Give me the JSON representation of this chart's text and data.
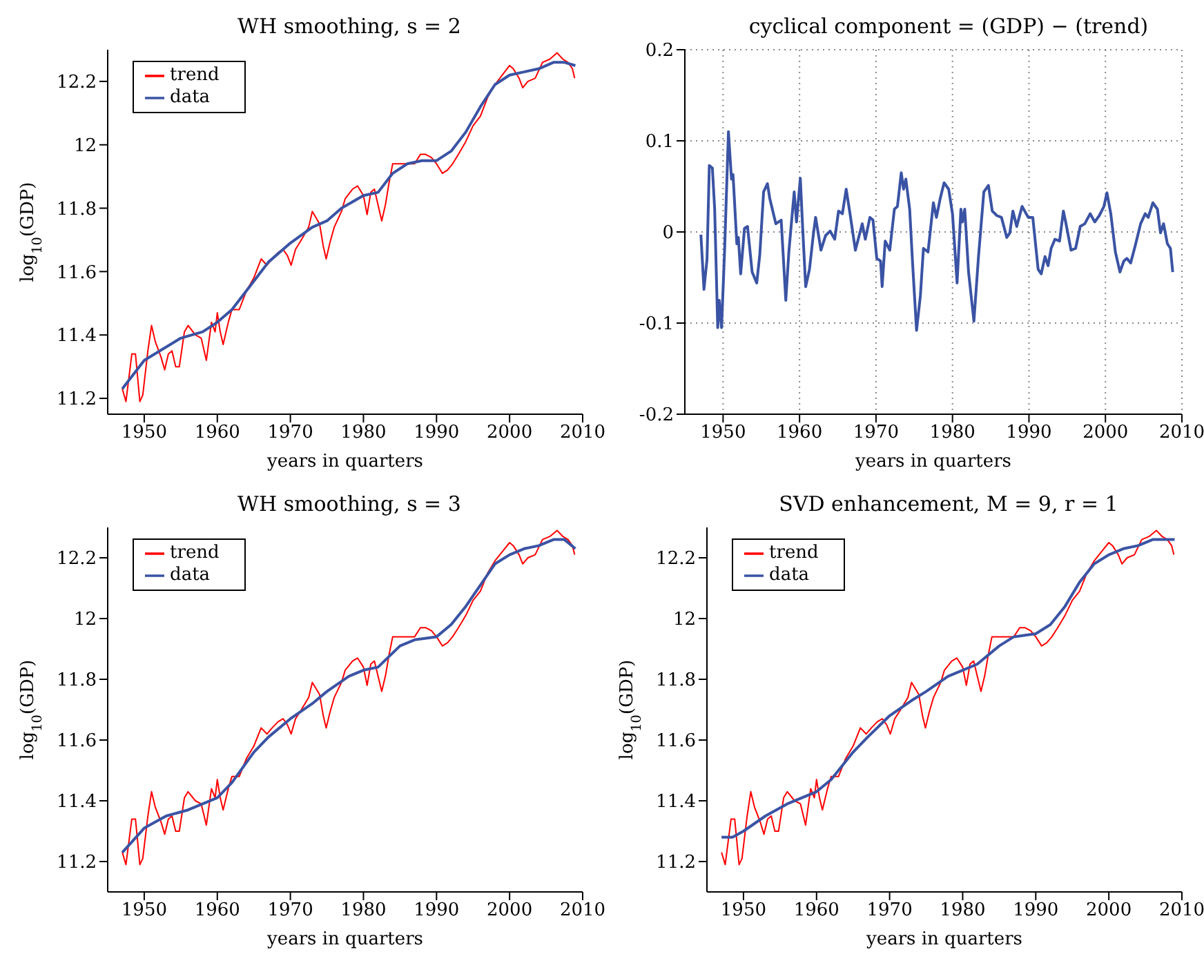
{
  "chart_data": [
    {
      "type": "line",
      "title": "WH smoothing,  s = 2",
      "xlabel": "years in quarters",
      "ylabel": "log$_{10}$(GDP)",
      "xlim": [
        1945,
        2010
      ],
      "xticks": [
        1950,
        1960,
        1970,
        1980,
        1990,
        2000,
        2010
      ],
      "ylim": [
        11.15,
        12.3
      ],
      "yticks": [
        11.2,
        11.4,
        11.6,
        11.8,
        12,
        12.2
      ],
      "grid": false,
      "legend": "top left",
      "series": [
        {
          "name": "trend",
          "color": "#ff0000",
          "x": [
            1947,
            1947.5,
            1948.3,
            1948.8,
            1949.4,
            1949.8,
            1950.5,
            1951,
            1951.5,
            1952.3,
            1952.8,
            1953.3,
            1953.8,
            1954.3,
            1954.8,
            1955.5,
            1956,
            1957,
            1957.8,
            1958.2,
            1958.5,
            1959.2,
            1959.7,
            1960,
            1960.4,
            1960.8,
            1961.5,
            1962,
            1963,
            1964,
            1965,
            1966,
            1966.8,
            1967.5,
            1968.3,
            1969,
            1969.6,
            1970.1,
            1970.7,
            1971.5,
            1972.5,
            1973,
            1973.5,
            1974,
            1974.5,
            1974.9,
            1975.4,
            1976,
            1977,
            1977.5,
            1978.5,
            1979.2,
            1980,
            1980.5,
            1981,
            1981.5,
            1982,
            1982.5,
            1983,
            1983.5,
            1984,
            1985,
            1986,
            1987,
            1987.8,
            1988.5,
            1989.3,
            1990,
            1990.8,
            1991.5,
            1992.2,
            1993,
            1994,
            1995,
            1996,
            1997,
            1998,
            1999,
            2000,
            2000.5,
            2001.3,
            2001.8,
            2002.5,
            2003.5,
            2004.5,
            2005.5,
            2006.5,
            2007.3,
            2008,
            2008.6,
            2008.9
          ],
          "values": [
            11.23,
            11.19,
            11.34,
            11.34,
            11.19,
            11.21,
            11.35,
            11.43,
            11.38,
            11.33,
            11.29,
            11.34,
            11.35,
            11.3,
            11.3,
            11.41,
            11.43,
            11.4,
            11.39,
            11.35,
            11.32,
            11.44,
            11.41,
            11.47,
            11.41,
            11.37,
            11.44,
            11.48,
            11.48,
            11.54,
            11.58,
            11.64,
            11.62,
            11.64,
            11.66,
            11.67,
            11.65,
            11.62,
            11.67,
            11.7,
            11.74,
            11.79,
            11.77,
            11.75,
            11.68,
            11.64,
            11.69,
            11.74,
            11.79,
            11.83,
            11.86,
            11.87,
            11.84,
            11.78,
            11.85,
            11.86,
            11.81,
            11.76,
            11.81,
            11.88,
            11.94,
            11.94,
            11.94,
            11.94,
            11.97,
            11.97,
            11.96,
            11.94,
            11.91,
            11.92,
            11.94,
            11.97,
            12.01,
            12.06,
            12.09,
            12.15,
            12.19,
            12.22,
            12.25,
            12.24,
            12.21,
            12.18,
            12.2,
            12.21,
            12.26,
            12.27,
            12.29,
            12.27,
            12.26,
            12.24,
            12.21
          ]
        },
        {
          "name": "data",
          "color": "#3a53a4",
          "x": [
            1947,
            1950,
            1955,
            1958,
            1960,
            1962,
            1965,
            1967,
            1970,
            1973,
            1975,
            1977,
            1980,
            1982,
            1984,
            1986,
            1988,
            1990,
            1992,
            1994,
            1996,
            1998,
            2000,
            2002,
            2004,
            2006,
            2007.5,
            2009
          ],
          "values": [
            11.23,
            11.32,
            11.39,
            11.41,
            11.44,
            11.48,
            11.57,
            11.63,
            11.69,
            11.74,
            11.76,
            11.8,
            11.84,
            11.85,
            11.91,
            11.94,
            11.95,
            11.95,
            11.98,
            12.04,
            12.12,
            12.19,
            12.22,
            12.23,
            12.24,
            12.26,
            12.26,
            12.25
          ]
        }
      ]
    },
    {
      "type": "line",
      "title": "cyclical component  =  (GDP) − (trend)",
      "xlabel": "years in quarters",
      "xlim": [
        1945,
        2010
      ],
      "xticks": [
        1950,
        1960,
        1970,
        1980,
        1990,
        2000,
        2010
      ],
      "ylim": [
        -0.2,
        0.2
      ],
      "yticks": [
        -0.2,
        -0.1,
        0,
        0.1,
        0.2
      ],
      "grid": true,
      "legend": false,
      "series": [
        {
          "color": "#3a53a4",
          "x": [
            1947.1,
            1947.5,
            1947.9,
            1948.2,
            1948.6,
            1948.9,
            1949.3,
            1949.5,
            1949.8,
            1950.2,
            1950.7,
            1951.1,
            1951.3,
            1951.8,
            1952,
            1952.3,
            1952.8,
            1953.2,
            1953.8,
            1954.4,
            1954.8,
            1955.3,
            1955.8,
            1956.1,
            1956.9,
            1957.6,
            1958.2,
            1958.6,
            1959.3,
            1959.6,
            1960.1,
            1960.4,
            1960.8,
            1961.3,
            1961.8,
            1962.1,
            1962.8,
            1963.4,
            1964,
            1964.6,
            1965.1,
            1965.6,
            1966.1,
            1966.6,
            1967.3,
            1968.2,
            1968.6,
            1969.2,
            1969.6,
            1970.1,
            1970.6,
            1970.8,
            1971.2,
            1971.8,
            1972.4,
            1972.8,
            1973.3,
            1973.6,
            1973.9,
            1974.4,
            1974.8,
            1975.3,
            1975.8,
            1976.2,
            1976.8,
            1977.5,
            1977.9,
            1978.4,
            1978.9,
            1979.5,
            1980,
            1980.6,
            1981.1,
            1981.3,
            1981.6,
            1982.1,
            1982.8,
            1983.4,
            1984.1,
            1984.7,
            1985.2,
            1985.8,
            1986.4,
            1987.1,
            1987.5,
            1987.9,
            1988.4,
            1989.1,
            1989.9,
            1990.5,
            1991.2,
            1991.6,
            1992.1,
            1992.5,
            1992.9,
            1993.4,
            1994,
            1994.5,
            1994.8,
            1995.5,
            1996.1,
            1996.7,
            1997.3,
            1998,
            1998.6,
            1999.2,
            1999.8,
            2000.2,
            2000.7,
            2001.3,
            2001.9,
            2002.4,
            2002.8,
            2003.3,
            2003.9,
            2004.6,
            2005.2,
            2005.6,
            2006.2,
            2006.8,
            2007.2,
            2007.6,
            2008.1,
            2008.5,
            2008.8
          ],
          "values": [
            -0.003,
            -0.063,
            -0.03,
            0.073,
            0.07,
            0.025,
            -0.105,
            -0.075,
            -0.105,
            -0.02,
            0.11,
            0.058,
            0.063,
            -0.013,
            -0.006,
            -0.046,
            0.004,
            0.006,
            -0.044,
            -0.056,
            -0.025,
            0.044,
            0.053,
            0.037,
            0.009,
            0.013,
            -0.075,
            -0.022,
            0.044,
            0.011,
            0.059,
            0.006,
            -0.06,
            -0.041,
            -0.003,
            0.016,
            -0.02,
            -0.004,
            0.001,
            -0.008,
            0.023,
            0.02,
            0.047,
            0.02,
            -0.02,
            0.009,
            -0.008,
            0.016,
            0.013,
            -0.029,
            -0.032,
            -0.06,
            -0.01,
            -0.02,
            0.025,
            0.028,
            0.065,
            0.047,
            0.058,
            0.025,
            -0.037,
            -0.108,
            -0.07,
            -0.018,
            -0.022,
            0.032,
            0.016,
            0.037,
            0.054,
            0.047,
            0.02,
            -0.056,
            0.025,
            0.011,
            0.025,
            -0.044,
            -0.098,
            -0.027,
            0.044,
            0.051,
            0.023,
            0.018,
            0.016,
            -0.006,
            -0.001,
            0.023,
            0.006,
            0.028,
            0.016,
            0.016,
            -0.041,
            -0.046,
            -0.027,
            -0.037,
            -0.018,
            -0.008,
            -0.01,
            0.023,
            0.011,
            -0.02,
            -0.018,
            0.006,
            0.009,
            0.02,
            0.011,
            0.018,
            0.028,
            0.043,
            0.02,
            -0.022,
            -0.044,
            -0.032,
            -0.029,
            -0.034,
            -0.015,
            0.009,
            0.02,
            0.016,
            0.032,
            0.025,
            -0.001,
            0.009,
            -0.013,
            -0.018,
            -0.044
          ]
        }
      ]
    },
    {
      "type": "line",
      "title": "WH smoothing,  s = 3",
      "xlabel": "years in quarters",
      "ylabel": "log$_{10}$(GDP)",
      "xlim": [
        1945,
        2010
      ],
      "xticks": [
        1950,
        1960,
        1970,
        1980,
        1990,
        2000,
        2010
      ],
      "ylim": [
        11.1,
        12.3
      ],
      "yticks": [
        11.2,
        11.4,
        11.6,
        11.8,
        12,
        12.2
      ],
      "grid": false,
      "legend": "top left",
      "series": [
        {
          "name": "trend",
          "color": "#ff0000",
          "x": [
            1947,
            1947.5,
            1948.3,
            1948.8,
            1949.4,
            1949.8,
            1950.5,
            1951,
            1951.5,
            1952.3,
            1952.8,
            1953.3,
            1953.8,
            1954.3,
            1954.8,
            1955.5,
            1956,
            1957,
            1957.8,
            1958.2,
            1958.5,
            1959.2,
            1959.7,
            1960,
            1960.4,
            1960.8,
            1961.5,
            1962,
            1963,
            1964,
            1965,
            1966,
            1966.8,
            1967.5,
            1968.3,
            1969,
            1969.6,
            1970.1,
            1970.7,
            1971.5,
            1972.5,
            1973,
            1973.5,
            1974,
            1974.5,
            1974.9,
            1975.4,
            1976,
            1977,
            1977.5,
            1978.5,
            1979.2,
            1980,
            1980.5,
            1981,
            1981.5,
            1982,
            1982.5,
            1983,
            1983.5,
            1984,
            1985,
            1986,
            1987,
            1987.8,
            1988.5,
            1989.3,
            1990,
            1990.8,
            1991.5,
            1992.2,
            1993,
            1994,
            1995,
            1996,
            1997,
            1998,
            1999,
            2000,
            2000.5,
            2001.3,
            2001.8,
            2002.5,
            2003.5,
            2004.5,
            2005.5,
            2006.5,
            2007.3,
            2008,
            2008.6,
            2008.9
          ],
          "values": [
            11.23,
            11.19,
            11.34,
            11.34,
            11.19,
            11.21,
            11.35,
            11.43,
            11.38,
            11.33,
            11.29,
            11.34,
            11.35,
            11.3,
            11.3,
            11.41,
            11.43,
            11.4,
            11.39,
            11.35,
            11.32,
            11.44,
            11.41,
            11.47,
            11.41,
            11.37,
            11.44,
            11.48,
            11.48,
            11.54,
            11.58,
            11.64,
            11.62,
            11.64,
            11.66,
            11.67,
            11.65,
            11.62,
            11.67,
            11.7,
            11.74,
            11.79,
            11.77,
            11.75,
            11.68,
            11.64,
            11.69,
            11.74,
            11.79,
            11.83,
            11.86,
            11.87,
            11.84,
            11.78,
            11.85,
            11.86,
            11.81,
            11.76,
            11.81,
            11.88,
            11.94,
            11.94,
            11.94,
            11.94,
            11.97,
            11.97,
            11.96,
            11.94,
            11.91,
            11.92,
            11.94,
            11.97,
            12.01,
            12.06,
            12.09,
            12.15,
            12.19,
            12.22,
            12.25,
            12.24,
            12.21,
            12.18,
            12.2,
            12.21,
            12.26,
            12.27,
            12.29,
            12.27,
            12.26,
            12.24,
            12.21
          ]
        },
        {
          "name": "data",
          "color": "#3a53a4",
          "x": [
            1947,
            1950,
            1953,
            1956,
            1960,
            1962,
            1965,
            1967,
            1970,
            1973,
            1975,
            1978,
            1980,
            1982,
            1985,
            1987,
            1990,
            1992,
            1994,
            1996,
            1998,
            2000,
            2002,
            2004,
            2006,
            2007.5,
            2009
          ],
          "values": [
            11.23,
            11.31,
            11.35,
            11.37,
            11.41,
            11.46,
            11.56,
            11.61,
            11.67,
            11.72,
            11.76,
            11.81,
            11.83,
            11.84,
            11.91,
            11.93,
            11.94,
            11.98,
            12.04,
            12.11,
            12.18,
            12.21,
            12.23,
            12.24,
            12.26,
            12.26,
            12.23
          ]
        }
      ]
    },
    {
      "type": "line",
      "title": "SVD enhancement,  M = 9,  r = 1",
      "xlabel": "years in quarters",
      "ylabel": "log$_{10}$(GDP)",
      "xlim": [
        1945,
        2010
      ],
      "xticks": [
        1950,
        1960,
        1970,
        1980,
        1990,
        2000,
        2010
      ],
      "ylim": [
        11.1,
        12.3
      ],
      "yticks": [
        11.2,
        11.4,
        11.6,
        11.8,
        12,
        12.2
      ],
      "grid": false,
      "legend": "top left",
      "series": [
        {
          "name": "trend",
          "color": "#ff0000",
          "x": [
            1947,
            1947.5,
            1948.3,
            1948.8,
            1949.4,
            1949.8,
            1950.5,
            1951,
            1951.5,
            1952.3,
            1952.8,
            1953.3,
            1953.8,
            1954.3,
            1954.8,
            1955.5,
            1956,
            1957,
            1957.8,
            1958.2,
            1958.5,
            1959.2,
            1959.7,
            1960,
            1960.4,
            1960.8,
            1961.5,
            1962,
            1963,
            1964,
            1965,
            1966,
            1966.8,
            1967.5,
            1968.3,
            1969,
            1969.6,
            1970.1,
            1970.7,
            1971.5,
            1972.5,
            1973,
            1973.5,
            1974,
            1974.5,
            1974.9,
            1975.4,
            1976,
            1977,
            1977.5,
            1978.5,
            1979.2,
            1980,
            1980.5,
            1981,
            1981.5,
            1982,
            1982.5,
            1983,
            1983.5,
            1984,
            1985,
            1986,
            1987,
            1987.8,
            1988.5,
            1989.3,
            1990,
            1990.8,
            1991.5,
            1992.2,
            1993,
            1994,
            1995,
            1996,
            1997,
            1998,
            1999,
            2000,
            2000.5,
            2001.3,
            2001.8,
            2002.5,
            2003.5,
            2004.5,
            2005.5,
            2006.5,
            2007.3,
            2008,
            2008.6,
            2008.9
          ],
          "values": [
            11.23,
            11.19,
            11.34,
            11.34,
            11.19,
            11.21,
            11.35,
            11.43,
            11.38,
            11.33,
            11.29,
            11.34,
            11.35,
            11.3,
            11.3,
            11.41,
            11.43,
            11.4,
            11.39,
            11.35,
            11.32,
            11.44,
            11.41,
            11.47,
            11.41,
            11.37,
            11.44,
            11.48,
            11.48,
            11.54,
            11.58,
            11.64,
            11.62,
            11.64,
            11.66,
            11.67,
            11.65,
            11.62,
            11.67,
            11.7,
            11.74,
            11.79,
            11.77,
            11.75,
            11.68,
            11.64,
            11.69,
            11.74,
            11.79,
            11.83,
            11.86,
            11.87,
            11.84,
            11.78,
            11.85,
            11.86,
            11.81,
            11.76,
            11.81,
            11.88,
            11.94,
            11.94,
            11.94,
            11.94,
            11.97,
            11.97,
            11.96,
            11.94,
            11.91,
            11.92,
            11.94,
            11.97,
            12.01,
            12.06,
            12.09,
            12.15,
            12.19,
            12.22,
            12.25,
            12.24,
            12.21,
            12.18,
            12.2,
            12.21,
            12.26,
            12.27,
            12.29,
            12.27,
            12.26,
            12.24,
            12.21
          ]
        },
        {
          "name": "data",
          "color": "#3a53a4",
          "x": [
            1947,
            1948.5,
            1950,
            1953,
            1956,
            1960,
            1962,
            1965,
            1967,
            1970,
            1973,
            1975,
            1978,
            1980,
            1982,
            1985,
            1987,
            1990,
            1992,
            1994,
            1996,
            1998,
            2000,
            2002,
            2004,
            2006,
            2009
          ],
          "values": [
            11.28,
            11.28,
            11.3,
            11.35,
            11.39,
            11.43,
            11.47,
            11.56,
            11.61,
            11.68,
            11.73,
            11.76,
            11.81,
            11.83,
            11.85,
            11.91,
            11.94,
            11.95,
            11.98,
            12.04,
            12.12,
            12.18,
            12.21,
            12.23,
            12.24,
            12.26,
            12.26
          ]
        }
      ]
    }
  ]
}
